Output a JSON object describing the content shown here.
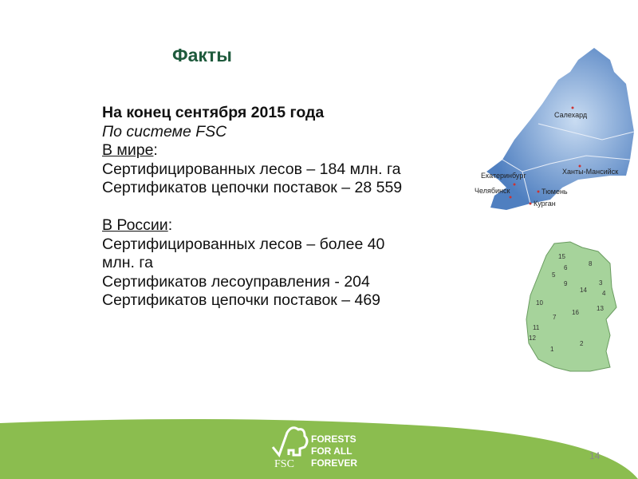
{
  "title": "Факты",
  "lines": {
    "date": "На конец сентября 2015 года",
    "system": "По системе FSC",
    "world_head": "В мире",
    "world_1": "Сертифицированных лесов – 184 млн. га",
    "world_2": "Сертификатов цепочки поставок – 28 559",
    "russia_head": "В России",
    "russia_1": "Сертифицированных лесов – более 40",
    "russia_1b": "млн. га",
    "russia_2": "Сертификатов лесоуправления - 204",
    "russia_3": "Сертификатов цепочки поставок – 469",
    "colon": ":"
  },
  "ural_map": {
    "cities": [
      "Салехард",
      "Ханты-Мансийск",
      "Екатеринбург",
      "Челябинск",
      "Тюмень",
      "Курган"
    ],
    "color": "#7fa3d4"
  },
  "germany_map": {
    "regions": [
      "1",
      "2",
      "3",
      "4",
      "5",
      "6",
      "7",
      "8",
      "9",
      "10",
      "11",
      "12",
      "13",
      "14",
      "15",
      "16"
    ],
    "color": "#a6d39b"
  },
  "footer": {
    "logo_text": [
      "FORESTS",
      "FOR ALL",
      "FOREVER"
    ],
    "logo_brand": "FSC",
    "green": "#8bbd4f",
    "page_number": "14"
  }
}
